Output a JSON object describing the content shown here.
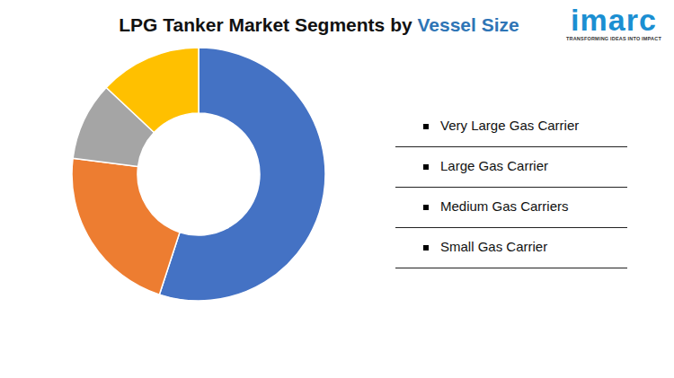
{
  "chart_data": {
    "type": "donut",
    "title": "LPG Tanker Market Segments by Vessel Size",
    "categories": [
      "Very Large Gas Carrier",
      "Large Gas Carrier",
      "Medium Gas Carriers",
      "Small Gas Carrier"
    ],
    "values": [
      55,
      22,
      10,
      13
    ],
    "colors": [
      "#4472c4",
      "#ed7d31",
      "#a5a5a5",
      "#ffc000"
    ],
    "legend": "right",
    "data_labels": false,
    "annotations": [
      "imarc",
      "TRANSFORMING IDEAS INTO IMPACT"
    ]
  }
}
